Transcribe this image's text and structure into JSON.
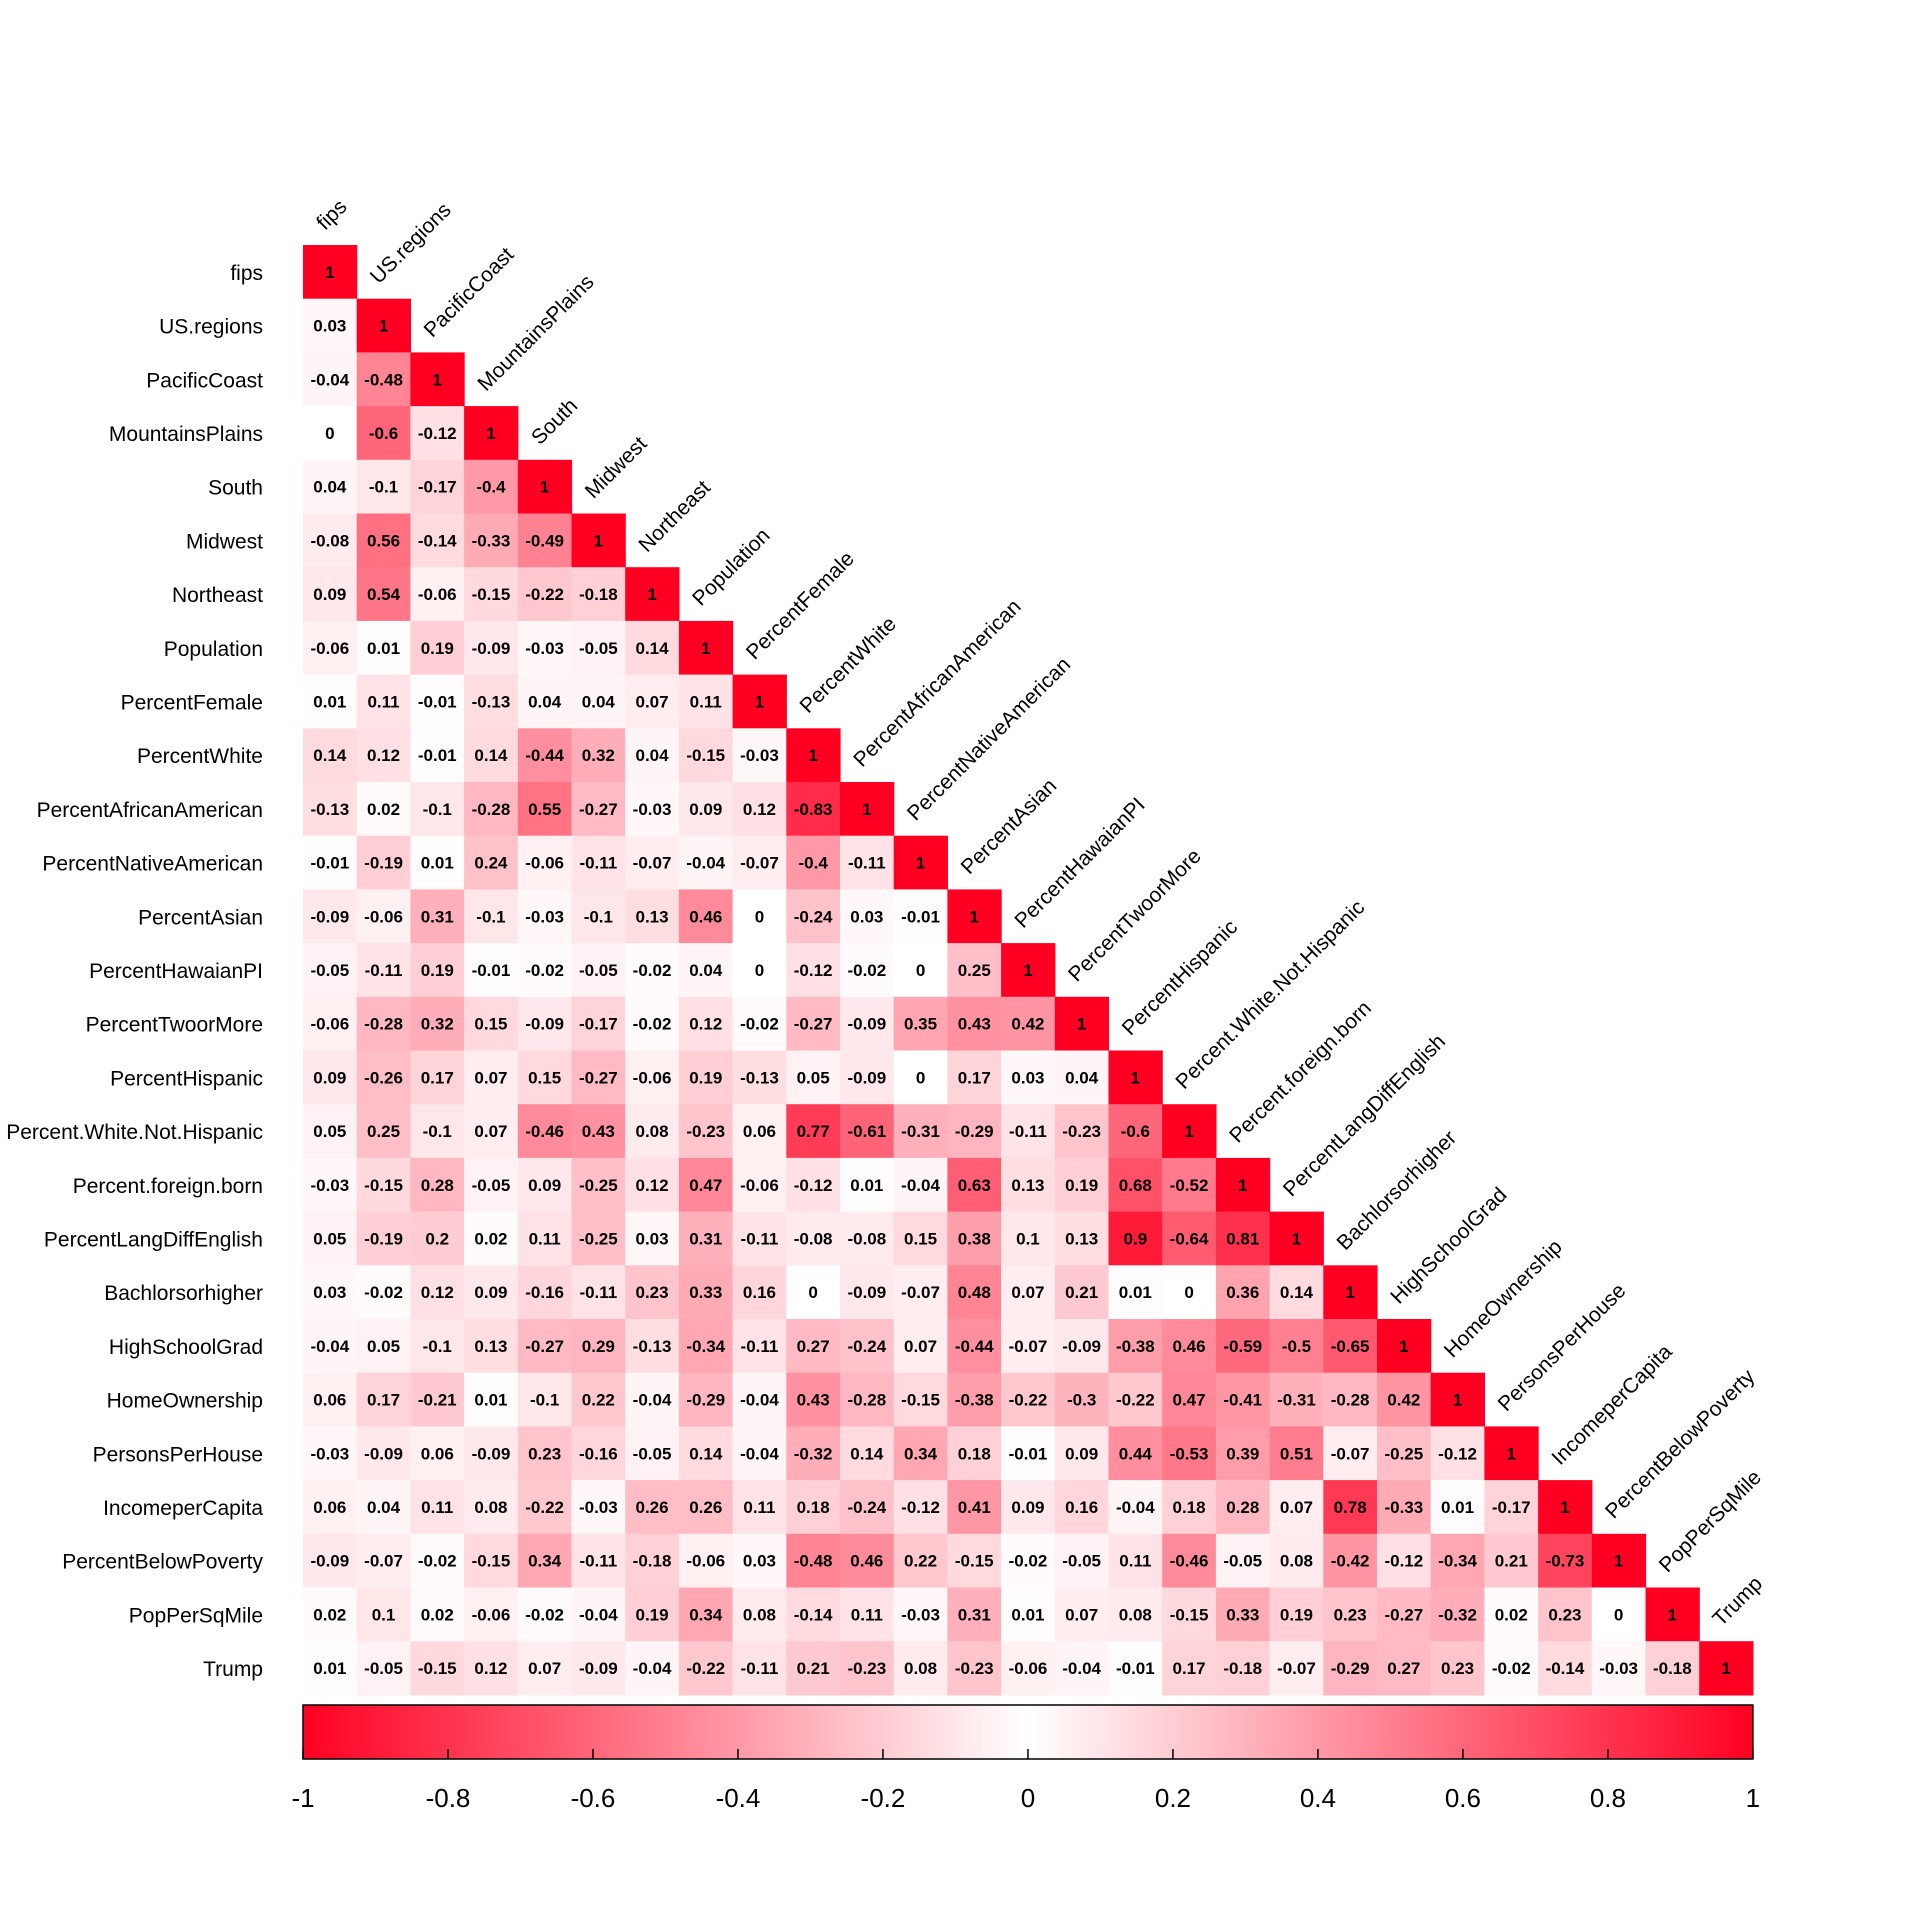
{
  "chart_data": {
    "type": "heatmap",
    "layout": "lower-triangle",
    "variables": [
      "fips",
      "US.regions",
      "PacificCoast",
      "MountainsPlains",
      "South",
      "Midwest",
      "Northeast",
      "Population",
      "PercentFemale",
      "PercentWhite",
      "PercentAfricanAmerican",
      "PercentNativeAmerican",
      "PercentAsian",
      "PercentHawaianPI",
      "PercentTwoorMore",
      "PercentHispanic",
      "Percent.White.Not.Hispanic",
      "Percent.foreign.born",
      "PercentLangDiffEnglish",
      "Bachlorsorhigher",
      "HighSchoolGrad",
      "HomeOwnership",
      "PersonsPerHouse",
      "IncomeperCapita",
      "PercentBelowPoverty",
      "PopPerSqMile",
      "Trump"
    ],
    "matrix_lower": [
      [
        "1"
      ],
      [
        "0.03",
        "1"
      ],
      [
        "-0.04",
        "-0.48",
        "1"
      ],
      [
        "0",
        "-0.6",
        "-0.12",
        "1"
      ],
      [
        "0.04",
        "-0.1",
        "-0.17",
        "-0.4",
        "1"
      ],
      [
        "-0.08",
        "0.56",
        "-0.14",
        "-0.33",
        "-0.49",
        "1"
      ],
      [
        "0.09",
        "0.54",
        "-0.06",
        "-0.15",
        "-0.22",
        "-0.18",
        "1"
      ],
      [
        "-0.06",
        "0.01",
        "0.19",
        "-0.09",
        "-0.03",
        "-0.05",
        "0.14",
        "1"
      ],
      [
        "0.01",
        "0.11",
        "-0.01",
        "-0.13",
        "0.04",
        "0.04",
        "0.07",
        "0.11",
        "1"
      ],
      [
        "0.14",
        "0.12",
        "-0.01",
        "0.14",
        "-0.44",
        "0.32",
        "0.04",
        "-0.15",
        "-0.03",
        "1"
      ],
      [
        "-0.13",
        "0.02",
        "-0.1",
        "-0.28",
        "0.55",
        "-0.27",
        "-0.03",
        "0.09",
        "0.12",
        "-0.83",
        "1"
      ],
      [
        "-0.01",
        "-0.19",
        "0.01",
        "0.24",
        "-0.06",
        "-0.11",
        "-0.07",
        "-0.04",
        "-0.07",
        "-0.4",
        "-0.11",
        "1"
      ],
      [
        "-0.09",
        "-0.06",
        "0.31",
        "-0.1",
        "-0.03",
        "-0.1",
        "0.13",
        "0.46",
        "0",
        "-0.24",
        "0.03",
        "-0.01",
        "1"
      ],
      [
        "-0.05",
        "-0.11",
        "0.19",
        "-0.01",
        "-0.02",
        "-0.05",
        "-0.02",
        "0.04",
        "0",
        "-0.12",
        "-0.02",
        "0",
        "0.25",
        "1"
      ],
      [
        "-0.06",
        "-0.28",
        "0.32",
        "0.15",
        "-0.09",
        "-0.17",
        "-0.02",
        "0.12",
        "-0.02",
        "-0.27",
        "-0.09",
        "0.35",
        "0.43",
        "0.42",
        "1"
      ],
      [
        "0.09",
        "-0.26",
        "0.17",
        "0.07",
        "0.15",
        "-0.27",
        "-0.06",
        "0.19",
        "-0.13",
        "0.05",
        "-0.09",
        "0",
        "0.17",
        "0.03",
        "0.04",
        "1"
      ],
      [
        "0.05",
        "0.25",
        "-0.1",
        "0.07",
        "-0.46",
        "0.43",
        "0.08",
        "-0.23",
        "0.06",
        "0.77",
        "-0.61",
        "-0.31",
        "-0.29",
        "-0.11",
        "-0.23",
        "-0.6",
        "1"
      ],
      [
        "-0.03",
        "-0.15",
        "0.28",
        "-0.05",
        "0.09",
        "-0.25",
        "0.12",
        "0.47",
        "-0.06",
        "-0.12",
        "0.01",
        "-0.04",
        "0.63",
        "0.13",
        "0.19",
        "0.68",
        "-0.52",
        "1"
      ],
      [
        "0.05",
        "-0.19",
        "0.2",
        "0.02",
        "0.11",
        "-0.25",
        "0.03",
        "0.31",
        "-0.11",
        "-0.08",
        "-0.08",
        "0.15",
        "0.38",
        "0.1",
        "0.13",
        "0.9",
        "-0.64",
        "0.81",
        "1"
      ],
      [
        "0.03",
        "-0.02",
        "0.12",
        "0.09",
        "-0.16",
        "-0.11",
        "0.23",
        "0.33",
        "0.16",
        "0",
        "-0.09",
        "-0.07",
        "0.48",
        "0.07",
        "0.21",
        "0.01",
        "0",
        "0.36",
        "0.14",
        "1"
      ],
      [
        "-0.04",
        "0.05",
        "-0.1",
        "0.13",
        "-0.27",
        "0.29",
        "-0.13",
        "-0.34",
        "-0.11",
        "0.27",
        "-0.24",
        "0.07",
        "-0.44",
        "-0.07",
        "-0.09",
        "-0.38",
        "0.46",
        "-0.59",
        "-0.5",
        "-0.65",
        "1"
      ],
      [
        "0.06",
        "0.17",
        "-0.21",
        "0.01",
        "-0.1",
        "0.22",
        "-0.04",
        "-0.29",
        "-0.04",
        "0.43",
        "-0.28",
        "-0.15",
        "-0.38",
        "-0.22",
        "-0.3",
        "-0.22",
        "0.47",
        "-0.41",
        "-0.31",
        "-0.28",
        "0.42",
        "1"
      ],
      [
        "-0.03",
        "-0.09",
        "0.06",
        "-0.09",
        "0.23",
        "-0.16",
        "-0.05",
        "0.14",
        "-0.04",
        "-0.32",
        "0.14",
        "0.34",
        "0.18",
        "-0.01",
        "0.09",
        "0.44",
        "-0.53",
        "0.39",
        "0.51",
        "-0.07",
        "-0.25",
        "-0.12",
        "1"
      ],
      [
        "0.06",
        "0.04",
        "0.11",
        "0.08",
        "-0.22",
        "-0.03",
        "0.26",
        "0.26",
        "0.11",
        "0.18",
        "-0.24",
        "-0.12",
        "0.41",
        "0.09",
        "0.16",
        "-0.04",
        "0.18",
        "0.28",
        "0.07",
        "0.78",
        "-0.33",
        "0.01",
        "-0.17",
        "1"
      ],
      [
        "-0.09",
        "-0.07",
        "-0.02",
        "-0.15",
        "0.34",
        "-0.11",
        "-0.18",
        "-0.06",
        "0.03",
        "-0.48",
        "0.46",
        "0.22",
        "-0.15",
        "-0.02",
        "-0.05",
        "0.11",
        "-0.46",
        "-0.05",
        "0.08",
        "-0.42",
        "-0.12",
        "-0.34",
        "0.21",
        "-0.73",
        "1"
      ],
      [
        "0.02",
        "0.1",
        "0.02",
        "-0.06",
        "-0.02",
        "-0.04",
        "0.19",
        "0.34",
        "0.08",
        "-0.14",
        "0.11",
        "-0.03",
        "0.31",
        "0.01",
        "0.07",
        "0.08",
        "-0.15",
        "0.33",
        "0.19",
        "0.23",
        "-0.27",
        "-0.32",
        "0.02",
        "0.23",
        "0",
        "1"
      ],
      [
        "0.01",
        "-0.05",
        "-0.15",
        "0.12",
        "0.07",
        "-0.09",
        "-0.04",
        "-0.22",
        "-0.11",
        "0.21",
        "-0.23",
        "0.08",
        "-0.23",
        "-0.06",
        "-0.04",
        "-0.01",
        "0.17",
        "-0.18",
        "-0.07",
        "-0.29",
        "0.27",
        "0.23",
        "-0.02",
        "-0.14",
        "-0.03",
        "-0.18",
        "1"
      ]
    ],
    "color_scale": {
      "min": -1,
      "max": 1,
      "ticks": [
        "-1",
        "-0.8",
        "-0.6",
        "-0.4",
        "-0.2",
        "0",
        "0.2",
        "0.4",
        "0.6",
        "0.8",
        "1"
      ]
    },
    "colors": {
      "strong": "#ff0022",
      "neutral": "#ffffff"
    }
  }
}
